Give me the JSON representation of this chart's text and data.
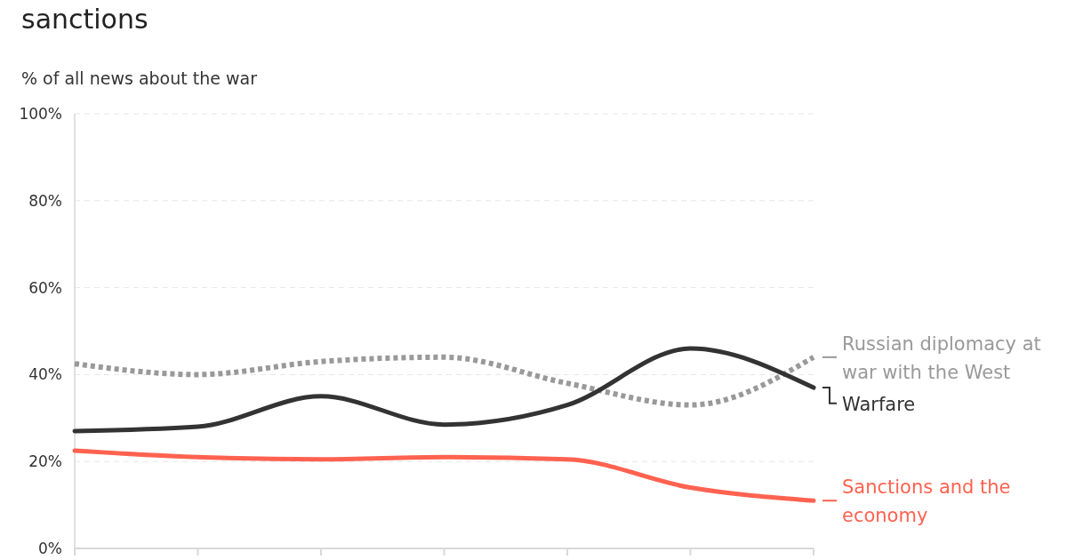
{
  "chart_data": {
    "type": "line",
    "title": "sanctions",
    "ylabel": "% of all news about the war",
    "categories": [
      null,
      null,
      null,
      null,
      null,
      null,
      null
    ],
    "series": [
      {
        "name": "Russian diplomacy at war with the West",
        "color": "#999999",
        "line_style": "dotted",
        "values": [
          42.5,
          40,
          43,
          44,
          38,
          33,
          44
        ]
      },
      {
        "name": "Warfare",
        "color": "#333333",
        "values": [
          27,
          28,
          35,
          28.5,
          33,
          46,
          37
        ]
      },
      {
        "name": "Sanctions and the economy",
        "color": "#ff6250",
        "values": [
          22.5,
          21,
          20.5,
          21,
          20.5,
          14,
          11
        ]
      }
    ],
    "ylim": [
      0,
      100
    ],
    "yticks": [
      {
        "value": 0,
        "label": "0%"
      },
      {
        "value": 20,
        "label": "20%"
      },
      {
        "value": 40,
        "label": "40%"
      },
      {
        "value": 60,
        "label": "60%"
      },
      {
        "value": 80,
        "label": "80%"
      },
      {
        "value": 100,
        "label": "100%"
      }
    ],
    "grid": "y",
    "legend": "right",
    "marker": "none",
    "line_style": "solid"
  }
}
